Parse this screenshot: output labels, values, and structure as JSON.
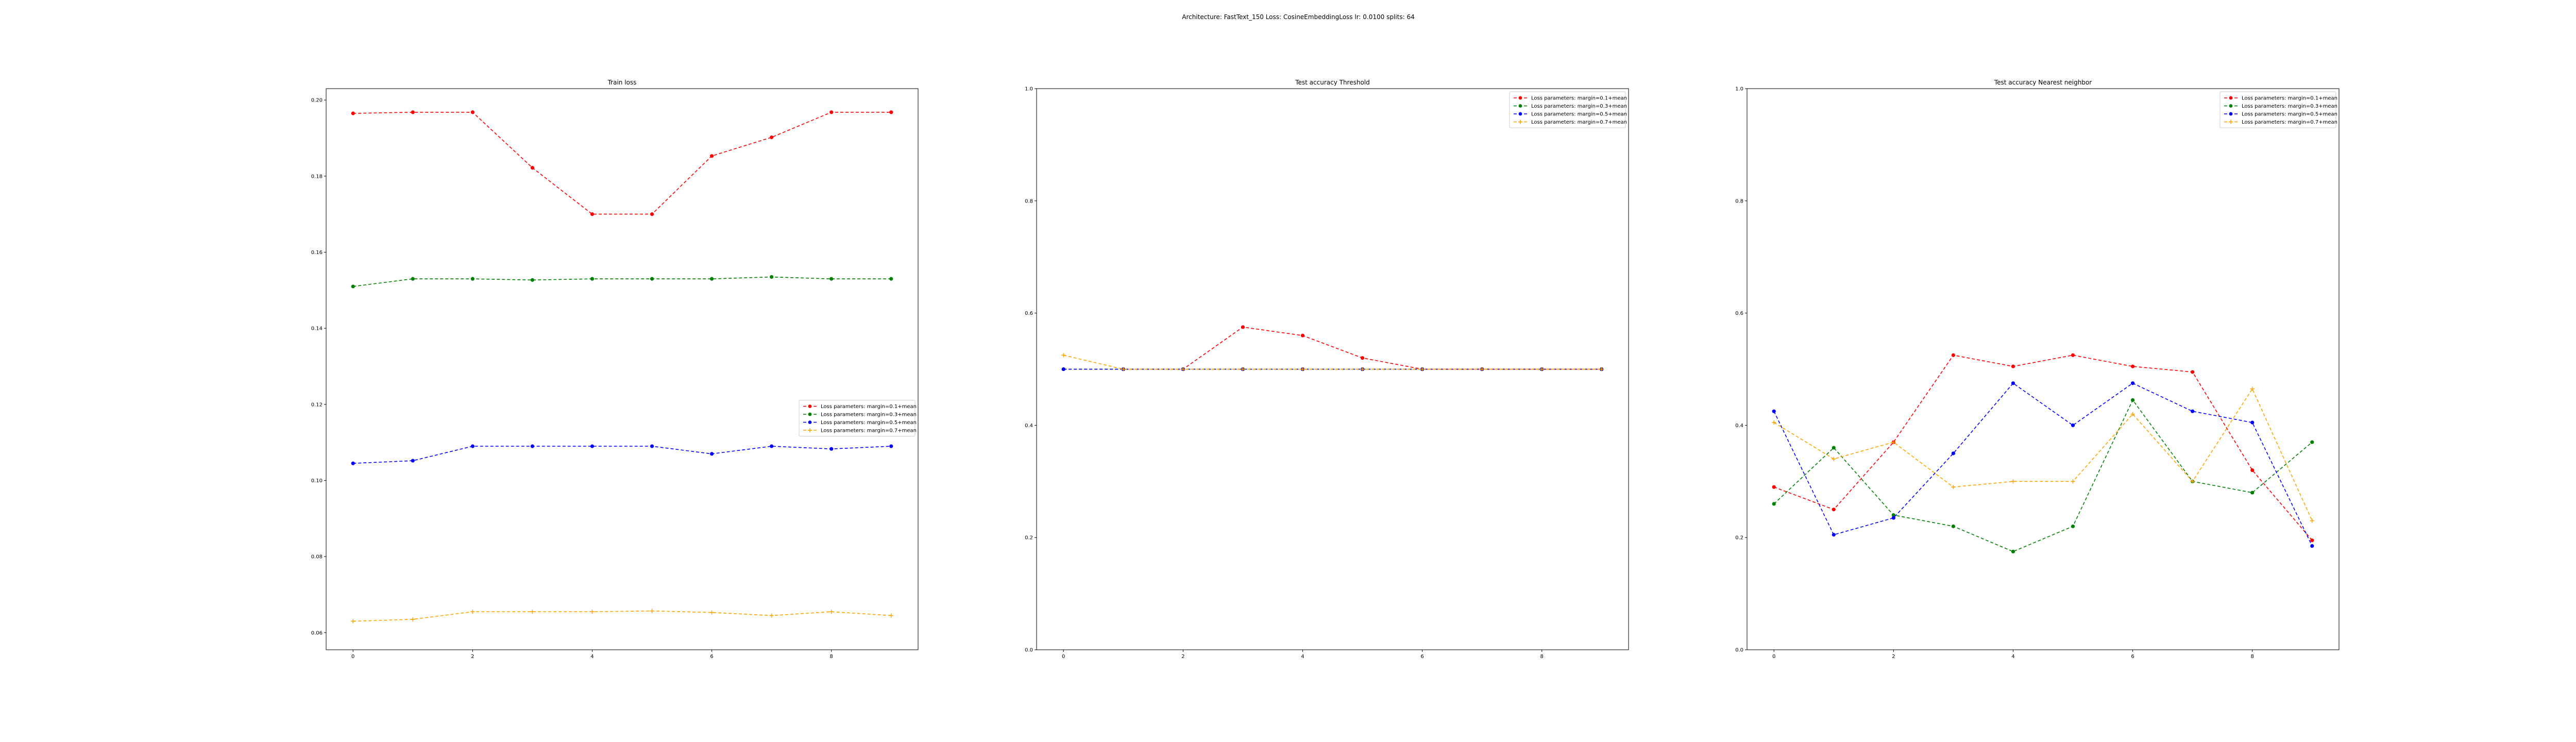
{
  "suptitle": "Architecture: FastText_150 Loss: CosineEmbeddingLoss lr: 0.0100 splits: 64",
  "colors": {
    "red": "#ff0000",
    "green": "#008000",
    "blue": "#0000ff",
    "orange": "#ffa500"
  },
  "chart_data": [
    {
      "type": "line",
      "title": "Train loss",
      "xlabel": "",
      "ylabel": "",
      "xlim": [
        -0.45,
        9.45
      ],
      "ylim": [
        0.0555,
        0.203
      ],
      "xticks": [
        0,
        2,
        4,
        6,
        8
      ],
      "xtick_labels": [
        "0",
        "2",
        "4",
        "6",
        "8"
      ],
      "yticks": [
        0.06,
        0.08,
        0.1,
        0.12,
        0.14,
        0.16,
        0.18,
        0.2
      ],
      "ytick_labels": [
        "0.06",
        "0.08",
        "0.10",
        "0.12",
        "0.14",
        "0.16",
        "0.18",
        "0.20"
      ],
      "legend_position": "center-right",
      "x": [
        0,
        1,
        2,
        3,
        4,
        5,
        6,
        7,
        8,
        9
      ],
      "series": [
        {
          "name": "Loss parameters: margin=0.1+mean",
          "color": "#ff0000",
          "marker": "circle",
          "values": [
            0.1965,
            0.1968,
            0.1968,
            0.1822,
            0.17,
            0.17,
            0.1853,
            0.1902,
            0.1968,
            0.1968
          ]
        },
        {
          "name": "Loss parameters: margin=0.3+mean",
          "color": "#008000",
          "marker": "circle",
          "values": [
            0.151,
            0.153,
            0.153,
            0.1527,
            0.153,
            0.153,
            0.153,
            0.1535,
            0.153,
            0.153
          ]
        },
        {
          "name": "Loss parameters: margin=0.5+mean",
          "color": "#0000ff",
          "marker": "circle",
          "values": [
            0.1045,
            0.1052,
            0.109,
            0.109,
            0.109,
            0.109,
            0.107,
            0.109,
            0.1083,
            0.109
          ]
        },
        {
          "name": "Loss parameters: margin=0.7+mean",
          "color": "#ffa500",
          "marker": "plus",
          "values": [
            0.063,
            0.0635,
            0.0655,
            0.0655,
            0.0655,
            0.0657,
            0.0653,
            0.0645,
            0.0655,
            0.0645
          ]
        }
      ]
    },
    {
      "type": "line",
      "title": "Test accuracy Threshold",
      "xlabel": "",
      "ylabel": "",
      "xlim": [
        -0.45,
        9.45
      ],
      "ylim": [
        0.0,
        1.0
      ],
      "xticks": [
        0,
        2,
        4,
        6,
        8
      ],
      "xtick_labels": [
        "0",
        "2",
        "4",
        "6",
        "8"
      ],
      "yticks": [
        0.0,
        0.2,
        0.4,
        0.6,
        0.8,
        1.0
      ],
      "ytick_labels": [
        "0.0",
        "0.2",
        "0.4",
        "0.6",
        "0.8",
        "1.0"
      ],
      "legend_position": "top-right",
      "x": [
        0,
        1,
        2,
        3,
        4,
        5,
        6,
        7,
        8,
        9
      ],
      "series": [
        {
          "name": "Loss parameters: margin=0.1+mean",
          "color": "#ff0000",
          "marker": "circle",
          "values": [
            0.5,
            0.5,
            0.5,
            0.575,
            0.56,
            0.52,
            0.5,
            0.5,
            0.5,
            0.5
          ]
        },
        {
          "name": "Loss parameters: margin=0.3+mean",
          "color": "#008000",
          "marker": "circle",
          "values": [
            0.5,
            0.5,
            0.5,
            0.5,
            0.5,
            0.5,
            0.5,
            0.5,
            0.5,
            0.5
          ]
        },
        {
          "name": "Loss parameters: margin=0.5+mean",
          "color": "#0000ff",
          "marker": "circle",
          "values": [
            0.5,
            0.5,
            0.5,
            0.5,
            0.5,
            0.5,
            0.5,
            0.5,
            0.5,
            0.5
          ]
        },
        {
          "name": "Loss parameters: margin=0.7+mean",
          "color": "#ffa500",
          "marker": "plus",
          "values": [
            0.525,
            0.5,
            0.5,
            0.5,
            0.5,
            0.5,
            0.5,
            0.5,
            0.5,
            0.5
          ]
        }
      ]
    },
    {
      "type": "line",
      "title": "Test accuracy Nearest neighbor",
      "xlabel": "",
      "ylabel": "",
      "xlim": [
        -0.45,
        9.45
      ],
      "ylim": [
        0.0,
        1.0
      ],
      "xticks": [
        0,
        2,
        4,
        6,
        8
      ],
      "xtick_labels": [
        "0",
        "2",
        "4",
        "6",
        "8"
      ],
      "yticks": [
        0.0,
        0.2,
        0.4,
        0.6,
        0.8,
        1.0
      ],
      "ytick_labels": [
        "0.0",
        "0.2",
        "0.4",
        "0.6",
        "0.8",
        "1.0"
      ],
      "legend_position": "top-right",
      "x": [
        0,
        1,
        2,
        3,
        4,
        5,
        6,
        7,
        8,
        9
      ],
      "series": [
        {
          "name": "Loss parameters: margin=0.1+mean",
          "color": "#ff0000",
          "marker": "circle",
          "values": [
            0.29,
            0.25,
            0.37,
            0.525,
            0.505,
            0.525,
            0.505,
            0.495,
            0.32,
            0.195
          ]
        },
        {
          "name": "Loss parameters: margin=0.3+mean",
          "color": "#008000",
          "marker": "circle",
          "values": [
            0.26,
            0.36,
            0.24,
            0.22,
            0.175,
            0.22,
            0.445,
            0.3,
            0.28,
            0.37
          ]
        },
        {
          "name": "Loss parameters: margin=0.5+mean",
          "color": "#0000ff",
          "marker": "circle",
          "values": [
            0.425,
            0.205,
            0.235,
            0.35,
            0.475,
            0.4,
            0.475,
            0.425,
            0.405,
            0.185
          ]
        },
        {
          "name": "Loss parameters: margin=0.7+mean",
          "color": "#ffa500",
          "marker": "plus",
          "values": [
            0.405,
            0.34,
            0.37,
            0.29,
            0.3,
            0.3,
            0.42,
            0.3,
            0.465,
            0.23
          ]
        }
      ]
    }
  ]
}
